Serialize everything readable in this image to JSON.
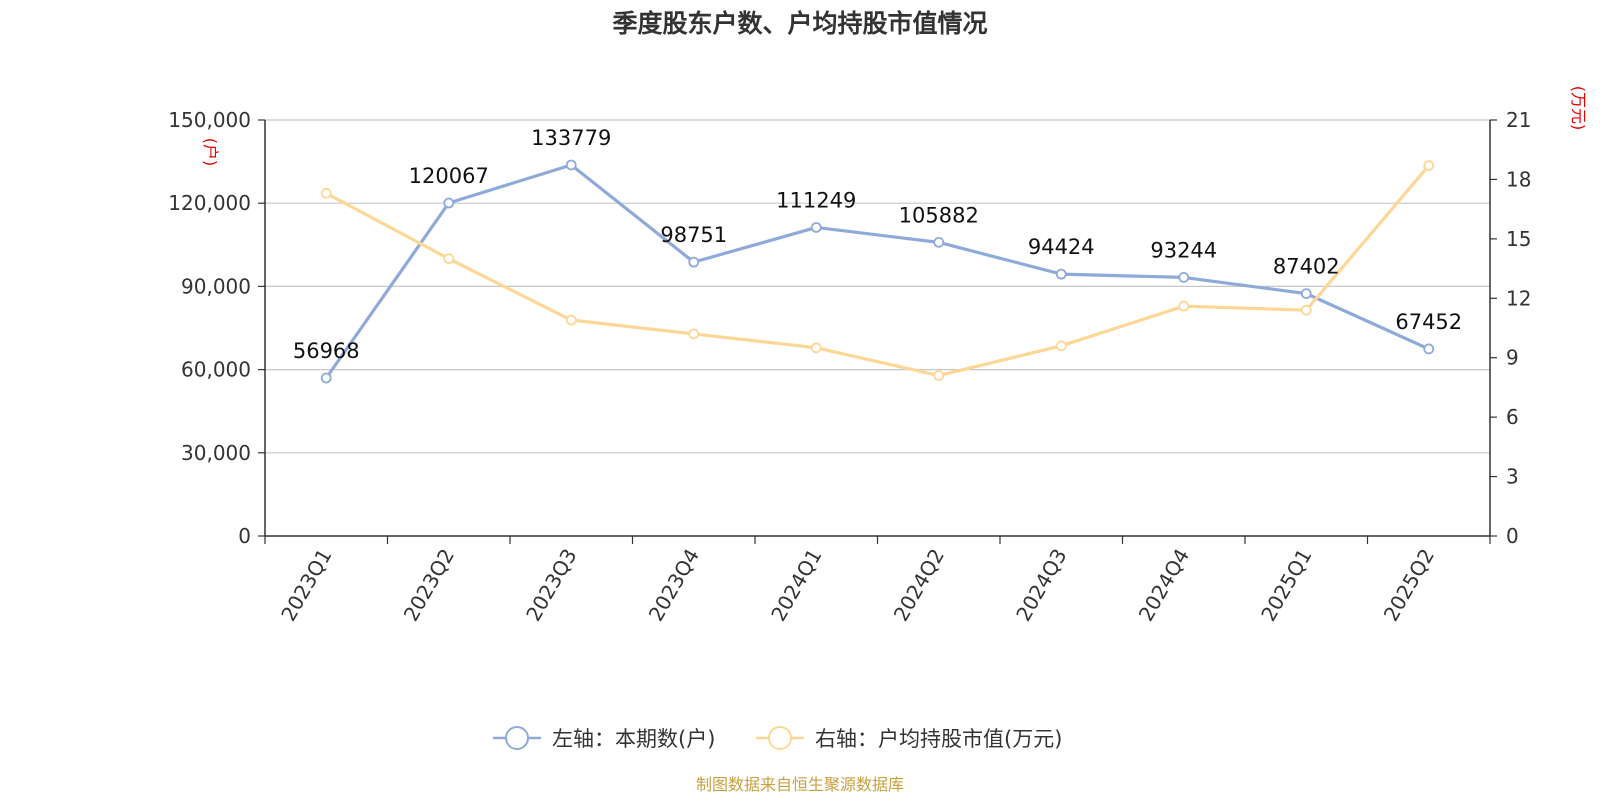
{
  "chart_data": {
    "type": "line",
    "title": "季度股东户数、户均持股市值情况",
    "categories": [
      "2023Q1",
      "2023Q2",
      "2023Q3",
      "2023Q4",
      "2024Q1",
      "2024Q2",
      "2024Q3",
      "2024Q4",
      "2025Q1",
      "2025Q2"
    ],
    "left_axis": {
      "unit": "(户)",
      "ylim": [
        0,
        150000
      ],
      "ticks": [
        "0",
        "30,000",
        "60,000",
        "90,000",
        "120,000",
        "150,000"
      ],
      "tick_values": [
        0,
        30000,
        60000,
        90000,
        120000,
        150000
      ]
    },
    "right_axis": {
      "unit": "(万元)",
      "ylim": [
        0,
        21
      ],
      "ticks": [
        "0",
        "3",
        "6",
        "9",
        "12",
        "15",
        "18",
        "21"
      ],
      "tick_values": [
        0,
        3,
        6,
        9,
        12,
        15,
        18,
        21
      ]
    },
    "series": [
      {
        "name": "左轴：本期数(户)",
        "axis": "left",
        "color": "#8eaad8",
        "values": [
          56968,
          120067,
          133779,
          98751,
          111249,
          105882,
          94424,
          93244,
          87402,
          67452
        ],
        "labels": [
          "56968",
          "120067",
          "133779",
          "98751",
          "111249",
          "105882",
          "94424",
          "93244",
          "87402",
          "67452"
        ]
      },
      {
        "name": "右轴：户均持股市值(万元)",
        "axis": "right",
        "color": "#fdd796",
        "values": [
          17.3,
          14.0,
          10.9,
          10.2,
          9.5,
          8.1,
          9.6,
          11.6,
          11.4,
          18.7
        ]
      }
    ],
    "grid": true,
    "legend": "bottom-center",
    "source": "制图数据来自恒生聚源数据库"
  }
}
